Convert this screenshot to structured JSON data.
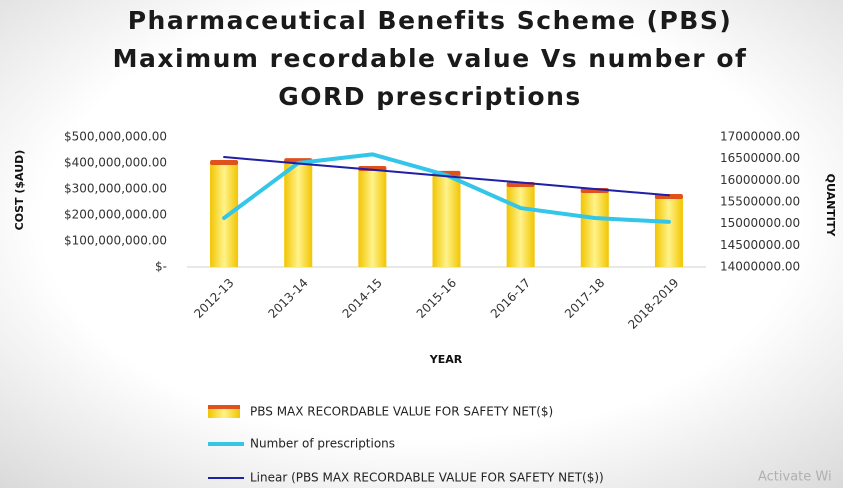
{
  "chart_data": {
    "type": "bar-line",
    "title": [
      "Pharmaceutical Benefits Scheme (PBS)",
      "Maximum recordable value Vs number of",
      "GORD prescriptions"
    ],
    "x_label": "YEAR",
    "y_label": "COST ($AUD)",
    "y2_label": "QUANTITY",
    "categories": [
      "2012-13",
      "2013-14",
      "2014-15",
      "2015-16",
      "2016-17",
      "2017-18",
      "2018-2019"
    ],
    "series": [
      {
        "name": "PBS MAX RECORDABLE VALUE FOR SAFETY NET($)",
        "kind": "bar",
        "color": "#f5d000",
        "values": [
          404000000,
          411000000,
          381000000,
          362000000,
          319000000,
          296000000,
          273000000
        ]
      },
      {
        "name": "Number of prescriptions",
        "kind": "line",
        "axis": "y2",
        "color": "#33c6e8",
        "values": [
          15130000,
          16400000,
          16600000,
          16120000,
          15360000,
          15130000,
          15040000
        ]
      },
      {
        "name": "Linear (PBS MAX RECORDABLE VALUE FOR SAFETY NET($))",
        "kind": "line",
        "color": "#1f1fa8",
        "values": [
          423000000,
          398000000,
          374000000,
          349000000,
          325000000,
          300000000,
          276000000
        ]
      }
    ],
    "ylim": [
      0,
      500000000
    ],
    "yticks": [
      {
        "value": 0,
        "label": "$-"
      },
      {
        "value": 100000000,
        "label": "$100,000,000.00"
      },
      {
        "value": 200000000,
        "label": "$200,000,000.00"
      },
      {
        "value": 300000000,
        "label": "$300,000,000.00"
      },
      {
        "value": 400000000,
        "label": "$400,000,000.00"
      },
      {
        "value": 500000000,
        "label": "$500,000,000.00"
      }
    ],
    "y2lim": [
      14000000,
      17000000
    ],
    "y2ticks": [
      {
        "value": 14000000,
        "label": "14000000.00"
      },
      {
        "value": 14500000,
        "label": "14500000.00"
      },
      {
        "value": 15000000,
        "label": "15000000.00"
      },
      {
        "value": 15500000,
        "label": "15500000.00"
      },
      {
        "value": 16000000,
        "label": "16000000.00"
      },
      {
        "value": 16500000,
        "label": "16500000.00"
      },
      {
        "value": 17000000,
        "label": "17000000.00"
      }
    ],
    "grid": false,
    "legend": "bottom",
    "watermark": "Activate Wi"
  }
}
